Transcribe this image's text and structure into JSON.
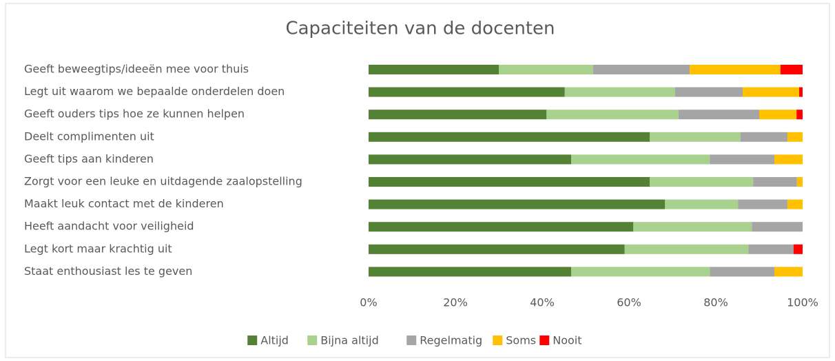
{
  "chart_data": {
    "type": "stacked-barh",
    "title": "Capaciteiten van de docenten",
    "categories": [
      "Geeft beweegtips/ideeën mee voor thuis",
      "Legt uit waarom we bepaalde onderdelen doen",
      "Geeft ouders tips hoe ze kunnen helpen",
      "Deelt complimenten uit",
      "Geeft tips aan kinderen",
      "Zorgt voor een leuke en uitdagende zaalopstelling",
      "Maakt leuk contact met de kinderen",
      "Heeft aandacht voor veiligheid",
      "Legt kort maar krachtig uit",
      "Staat enthousiast les te geven"
    ],
    "series": [
      {
        "name": "Altijd",
        "color": "#548235",
        "values": [
          30,
          45.2,
          41,
          64.8,
          46.7,
          64.8,
          68.3,
          61,
          59,
          46.7
        ]
      },
      {
        "name": "Bijna altijd",
        "color": "#a9d18e",
        "values": [
          21.7,
          25.4,
          30.4,
          20.9,
          31.9,
          23.8,
          16.8,
          27.3,
          28.5,
          31.9
        ]
      },
      {
        "name": "Regelmatig",
        "color": "#a5a5a5",
        "values": [
          22.3,
          15.6,
          18.6,
          10.8,
          14.9,
          10.1,
          11.4,
          11.7,
          10.4,
          14.9
        ]
      },
      {
        "name": "Soms",
        "color": "#ffc000",
        "values": [
          20.9,
          13,
          8.6,
          3.5,
          6.5,
          1.3,
          3.5,
          0,
          0,
          6.5
        ]
      },
      {
        "name": "Nooit",
        "color": "#ff0000",
        "values": [
          5.1,
          0.8,
          1.4,
          0,
          0,
          0,
          0,
          0,
          2.1,
          0
        ]
      }
    ],
    "xlim": [
      0,
      100
    ],
    "xticks": [
      {
        "value": 0,
        "label": "0%"
      },
      {
        "value": 20,
        "label": "20%"
      },
      {
        "value": 40,
        "label": "40%"
      },
      {
        "value": 60,
        "label": "60%"
      },
      {
        "value": 80,
        "label": "80%"
      },
      {
        "value": 100,
        "label": "100%"
      }
    ],
    "legend": "bottom"
  }
}
